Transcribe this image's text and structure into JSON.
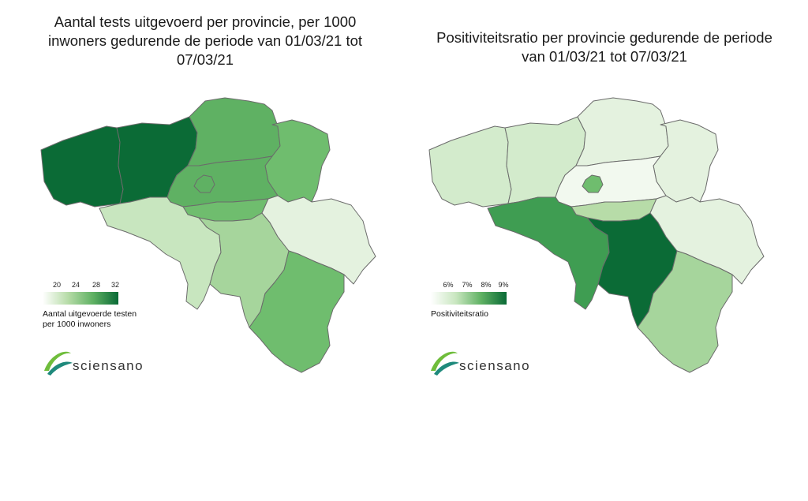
{
  "left_panel": {
    "title_lines": [
      "Aantal tests uitgevoerd per provincie, per 1000",
      "inwoners gedurende de periode van 01/03/21 tot",
      "07/03/21"
    ],
    "legend": {
      "ticks": [
        "20",
        "24",
        "28",
        "32"
      ],
      "label_lines": [
        "Aantal uitgevoerde testen",
        "per 1000 inwoners"
      ]
    },
    "regions": {
      "west_vlaanderen": "#0b6b36",
      "oost_vlaanderen": "#0b6b36",
      "antwerpen": "#5fb163",
      "limburg": "#6fbd6e",
      "vlaams_brabant": "#5fb163",
      "brussels": "#5fb163",
      "brabant_wallon": "#6fbd6e",
      "hainaut": "#c8e6bf",
      "namur": "#a6d59c",
      "liege": "#e4f2df",
      "luxembourg": "#6fbd6e"
    }
  },
  "right_panel": {
    "title_lines": [
      "Positiviteitsratio per provincie gedurende de periode",
      "van 01/03/21 tot 07/03/21"
    ],
    "legend": {
      "ticks": [
        "6%",
        "7%",
        "8%",
        "9%"
      ],
      "label_lines": [
        "Positiviteitsratio"
      ]
    },
    "regions": {
      "west_vlaanderen": "#d3ebcc",
      "oost_vlaanderen": "#d3ebcc",
      "antwerpen": "#e4f2df",
      "limburg": "#e4f2df",
      "vlaams_brabant": "#f2f9ef",
      "brussels": "#6fbd6e",
      "brabant_wallon": "#b7dca8",
      "hainaut": "#3f9d52",
      "namur": "#0b6b36",
      "liege": "#e4f2df",
      "luxembourg": "#a6d59c"
    }
  },
  "logo": {
    "prefix": "scien",
    "suffix": "sano",
    "colors": {
      "green": "#6fbd3b",
      "teal": "#1f8a7c",
      "text": "#333333"
    }
  }
}
